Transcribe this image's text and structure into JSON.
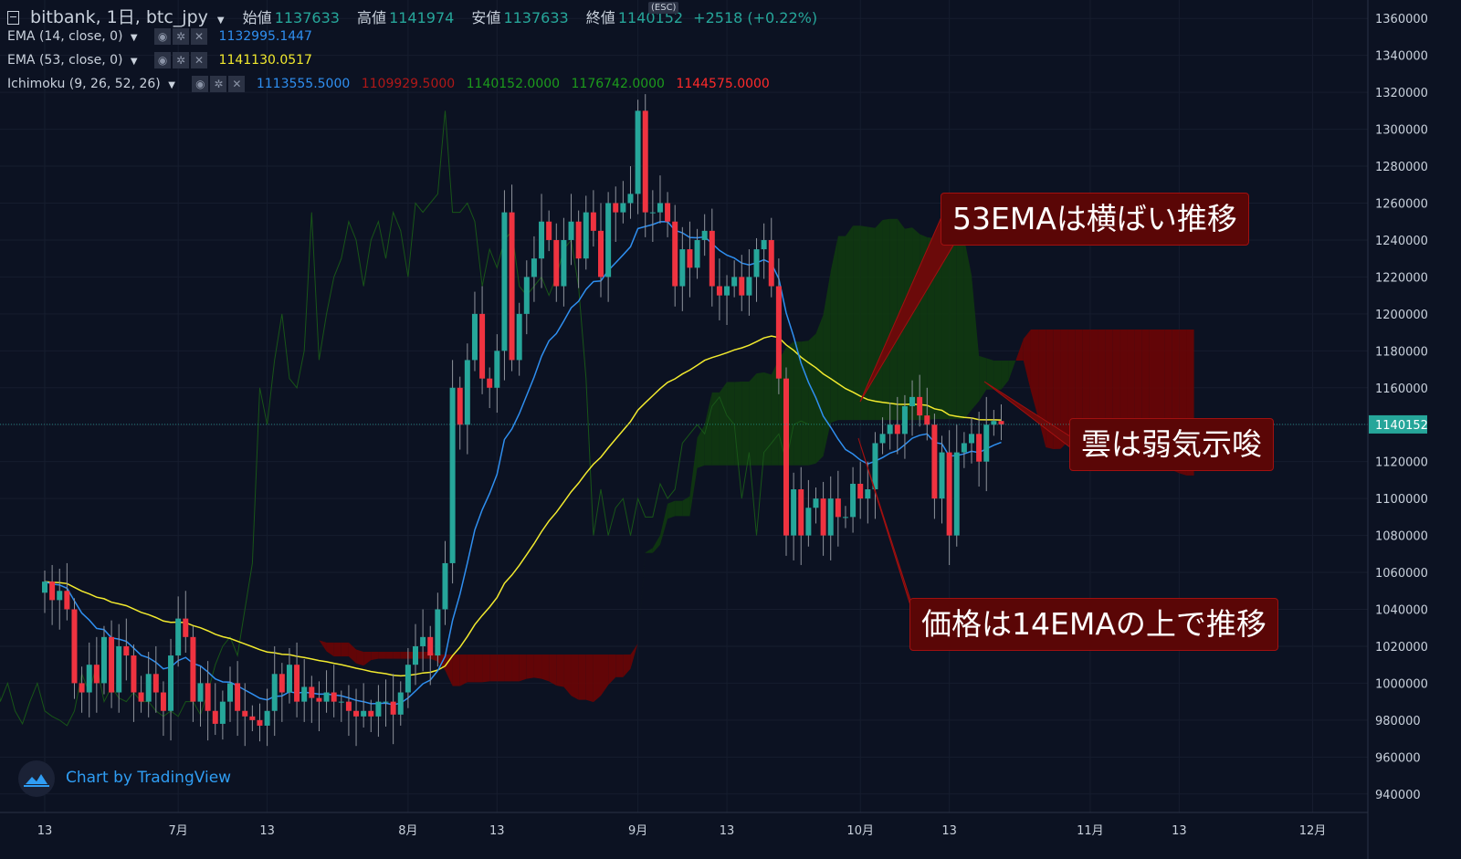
{
  "header": {
    "symbol": "bitbank, 1日, btc_jpy",
    "ohlc": [
      {
        "label": "始値",
        "value": "1137633"
      },
      {
        "label": "高値",
        "value": "1141974"
      },
      {
        "label": "安値",
        "value": "1137633"
      },
      {
        "label": "終値",
        "value": "1140152"
      }
    ],
    "change": "+2518 (+0.22%)",
    "esc": "(ESC)"
  },
  "indicators": [
    {
      "name": "EMA (14, close, 0)",
      "values": [
        "1132995.1447"
      ],
      "colors": [
        "#2f8ff0"
      ]
    },
    {
      "name": "EMA (53, close, 0)",
      "values": [
        "1141130.0517"
      ],
      "colors": [
        "#f2ea2e"
      ]
    },
    {
      "name": "Ichimoku (9, 26, 52, 26)",
      "values": [
        "1113555.5000",
        "1109929.5000",
        "1140152.0000",
        "1176742.0000",
        "1144575.0000"
      ],
      "colors": [
        "#2f8ff0",
        "#b01818",
        "#1c9b1c",
        "#1c9b1c",
        "#ff2a2a"
      ]
    }
  ],
  "annotations": {
    "ema53": "53EMAは横ばい推移",
    "cloud": "雲は弱気示唆",
    "price": "価格は14EMAの上で推移"
  },
  "watermark": "Chart by TradingView",
  "price_tag": "1140152",
  "icons": [
    "eye-icon",
    "gear-icon",
    "close-icon",
    "chevron-down-icon",
    "tradingview-logo-icon"
  ],
  "chart_data": {
    "type": "candlestick",
    "ylim": [
      930000,
      1370000
    ],
    "y_ticks": [
      940000,
      960000,
      980000,
      1000000,
      1020000,
      1040000,
      1060000,
      1080000,
      1100000,
      1120000,
      1140000,
      1160000,
      1180000,
      1200000,
      1220000,
      1240000,
      1260000,
      1280000,
      1300000,
      1320000,
      1340000,
      1360000
    ],
    "x_ticks": [
      {
        "day": 0,
        "label": "13"
      },
      {
        "day": 18,
        "label": "7月"
      },
      {
        "day": 30,
        "label": "13"
      },
      {
        "day": 49,
        "label": "8月"
      },
      {
        "day": 61,
        "label": "13"
      },
      {
        "day": 80,
        "label": "9月"
      },
      {
        "day": 92,
        "label": "13"
      },
      {
        "day": 110,
        "label": "10月"
      },
      {
        "day": 122,
        "label": "13"
      },
      {
        "day": 141,
        "label": "11月"
      },
      {
        "day": 153,
        "label": "13"
      },
      {
        "day": 171,
        "label": "12月"
      }
    ],
    "last_price": 1140152,
    "close": [
      1055000,
      1045000,
      1050000,
      1040000,
      1000000,
      995000,
      1010000,
      1000000,
      1025000,
      995000,
      1020000,
      1015000,
      995000,
      990000,
      1005000,
      995000,
      985000,
      1015000,
      1035000,
      1025000,
      990000,
      1000000,
      985000,
      978000,
      990000,
      1000000,
      985000,
      982000,
      980000,
      977000,
      985000,
      1005000,
      995000,
      1010000,
      990000,
      998000,
      992000,
      990000,
      995000,
      990000,
      990000,
      985000,
      982000,
      985000,
      982000,
      990000,
      990000,
      983000,
      995000,
      1010000,
      1020000,
      1025000,
      1015000,
      1040000,
      1065000,
      1160000,
      1140000,
      1175000,
      1200000,
      1165000,
      1160000,
      1180000,
      1255000,
      1175000,
      1200000,
      1220000,
      1230000,
      1250000,
      1240000,
      1215000,
      1240000,
      1250000,
      1230000,
      1255000,
      1245000,
      1220000,
      1260000,
      1255000,
      1260000,
      1265000,
      1310000,
      1255000,
      1255000,
      1260000,
      1250000,
      1215000,
      1235000,
      1225000,
      1240000,
      1245000,
      1215000,
      1210000,
      1215000,
      1220000,
      1210000,
      1220000,
      1235000,
      1240000,
      1215000,
      1165000,
      1080000,
      1105000,
      1080000,
      1095000,
      1100000,
      1080000,
      1100000,
      1090000,
      1090000,
      1108000,
      1100000,
      1105000,
      1130000,
      1135000,
      1140000,
      1135000,
      1150000,
      1155000,
      1145000,
      1140000,
      1100000,
      1125000,
      1080000,
      1125000,
      1130000,
      1135000,
      1120000,
      1140000,
      1142000,
      1140152
    ],
    "ema14_last": 1132995.1447,
    "ema53_last": 1141130.0517,
    "ichimoku_last": {
      "tenkan": 1113555.5,
      "kijun": 1109929.5,
      "chikou": 1140152,
      "span_a": 1176742,
      "span_b": 1144575
    }
  }
}
